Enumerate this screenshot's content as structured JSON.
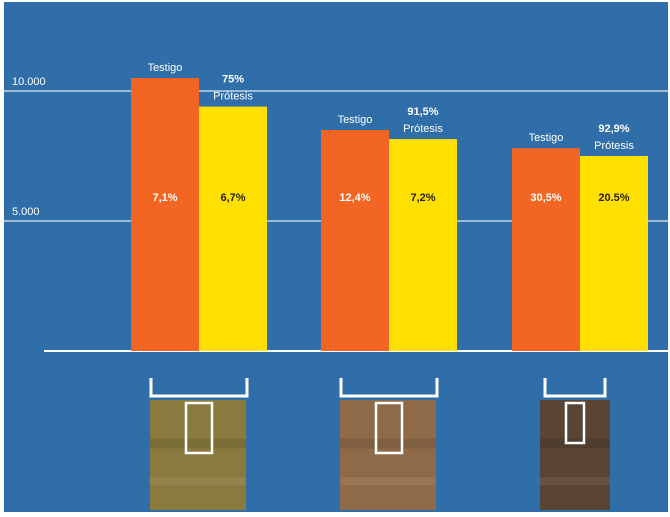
{
  "chart_data": {
    "type": "bar",
    "ylim": [
      0,
      12000
    ],
    "y_ticks": [
      {
        "value": 10000,
        "label": "10.000"
      },
      {
        "value": 5000,
        "label": "5.000"
      }
    ],
    "grid": true,
    "categories": [
      "",
      "",
      ""
    ],
    "series": [
      {
        "name": "Testigo",
        "color": "#f26522",
        "values": [
          10500,
          8500,
          7800
        ]
      },
      {
        "name": "Prótesis",
        "color": "#ffe000",
        "values": [
          9400,
          8150,
          7500
        ]
      }
    ],
    "groups": [
      {
        "testigo_label": "Testigo",
        "protesis_label": "Prótesis",
        "top_pct": "75%",
        "testigo_inner": "7,1%",
        "protesis_inner": "6,7%"
      },
      {
        "testigo_label": "Testigo",
        "protesis_label": "Prótesis",
        "top_pct": "91,5%",
        "testigo_inner": "12,4%",
        "protesis_inner": "7,2%"
      },
      {
        "testigo_label": "Testigo",
        "protesis_label": "Prótesis",
        "top_pct": "92,9%",
        "testigo_inner": "30,5%",
        "protesis_inner": "20.5%"
      }
    ]
  },
  "colors": {
    "background": "#2f6ea9",
    "gridline": "#dfe8f3",
    "axis": "#ffffff"
  },
  "photos": [
    {
      "name": "wood-sample-photo-1",
      "tone": "#8a7a3e"
    },
    {
      "name": "wood-sample-photo-2",
      "tone": "#8f6a48"
    },
    {
      "name": "wood-sample-photo-3",
      "tone": "#5a4434"
    }
  ]
}
